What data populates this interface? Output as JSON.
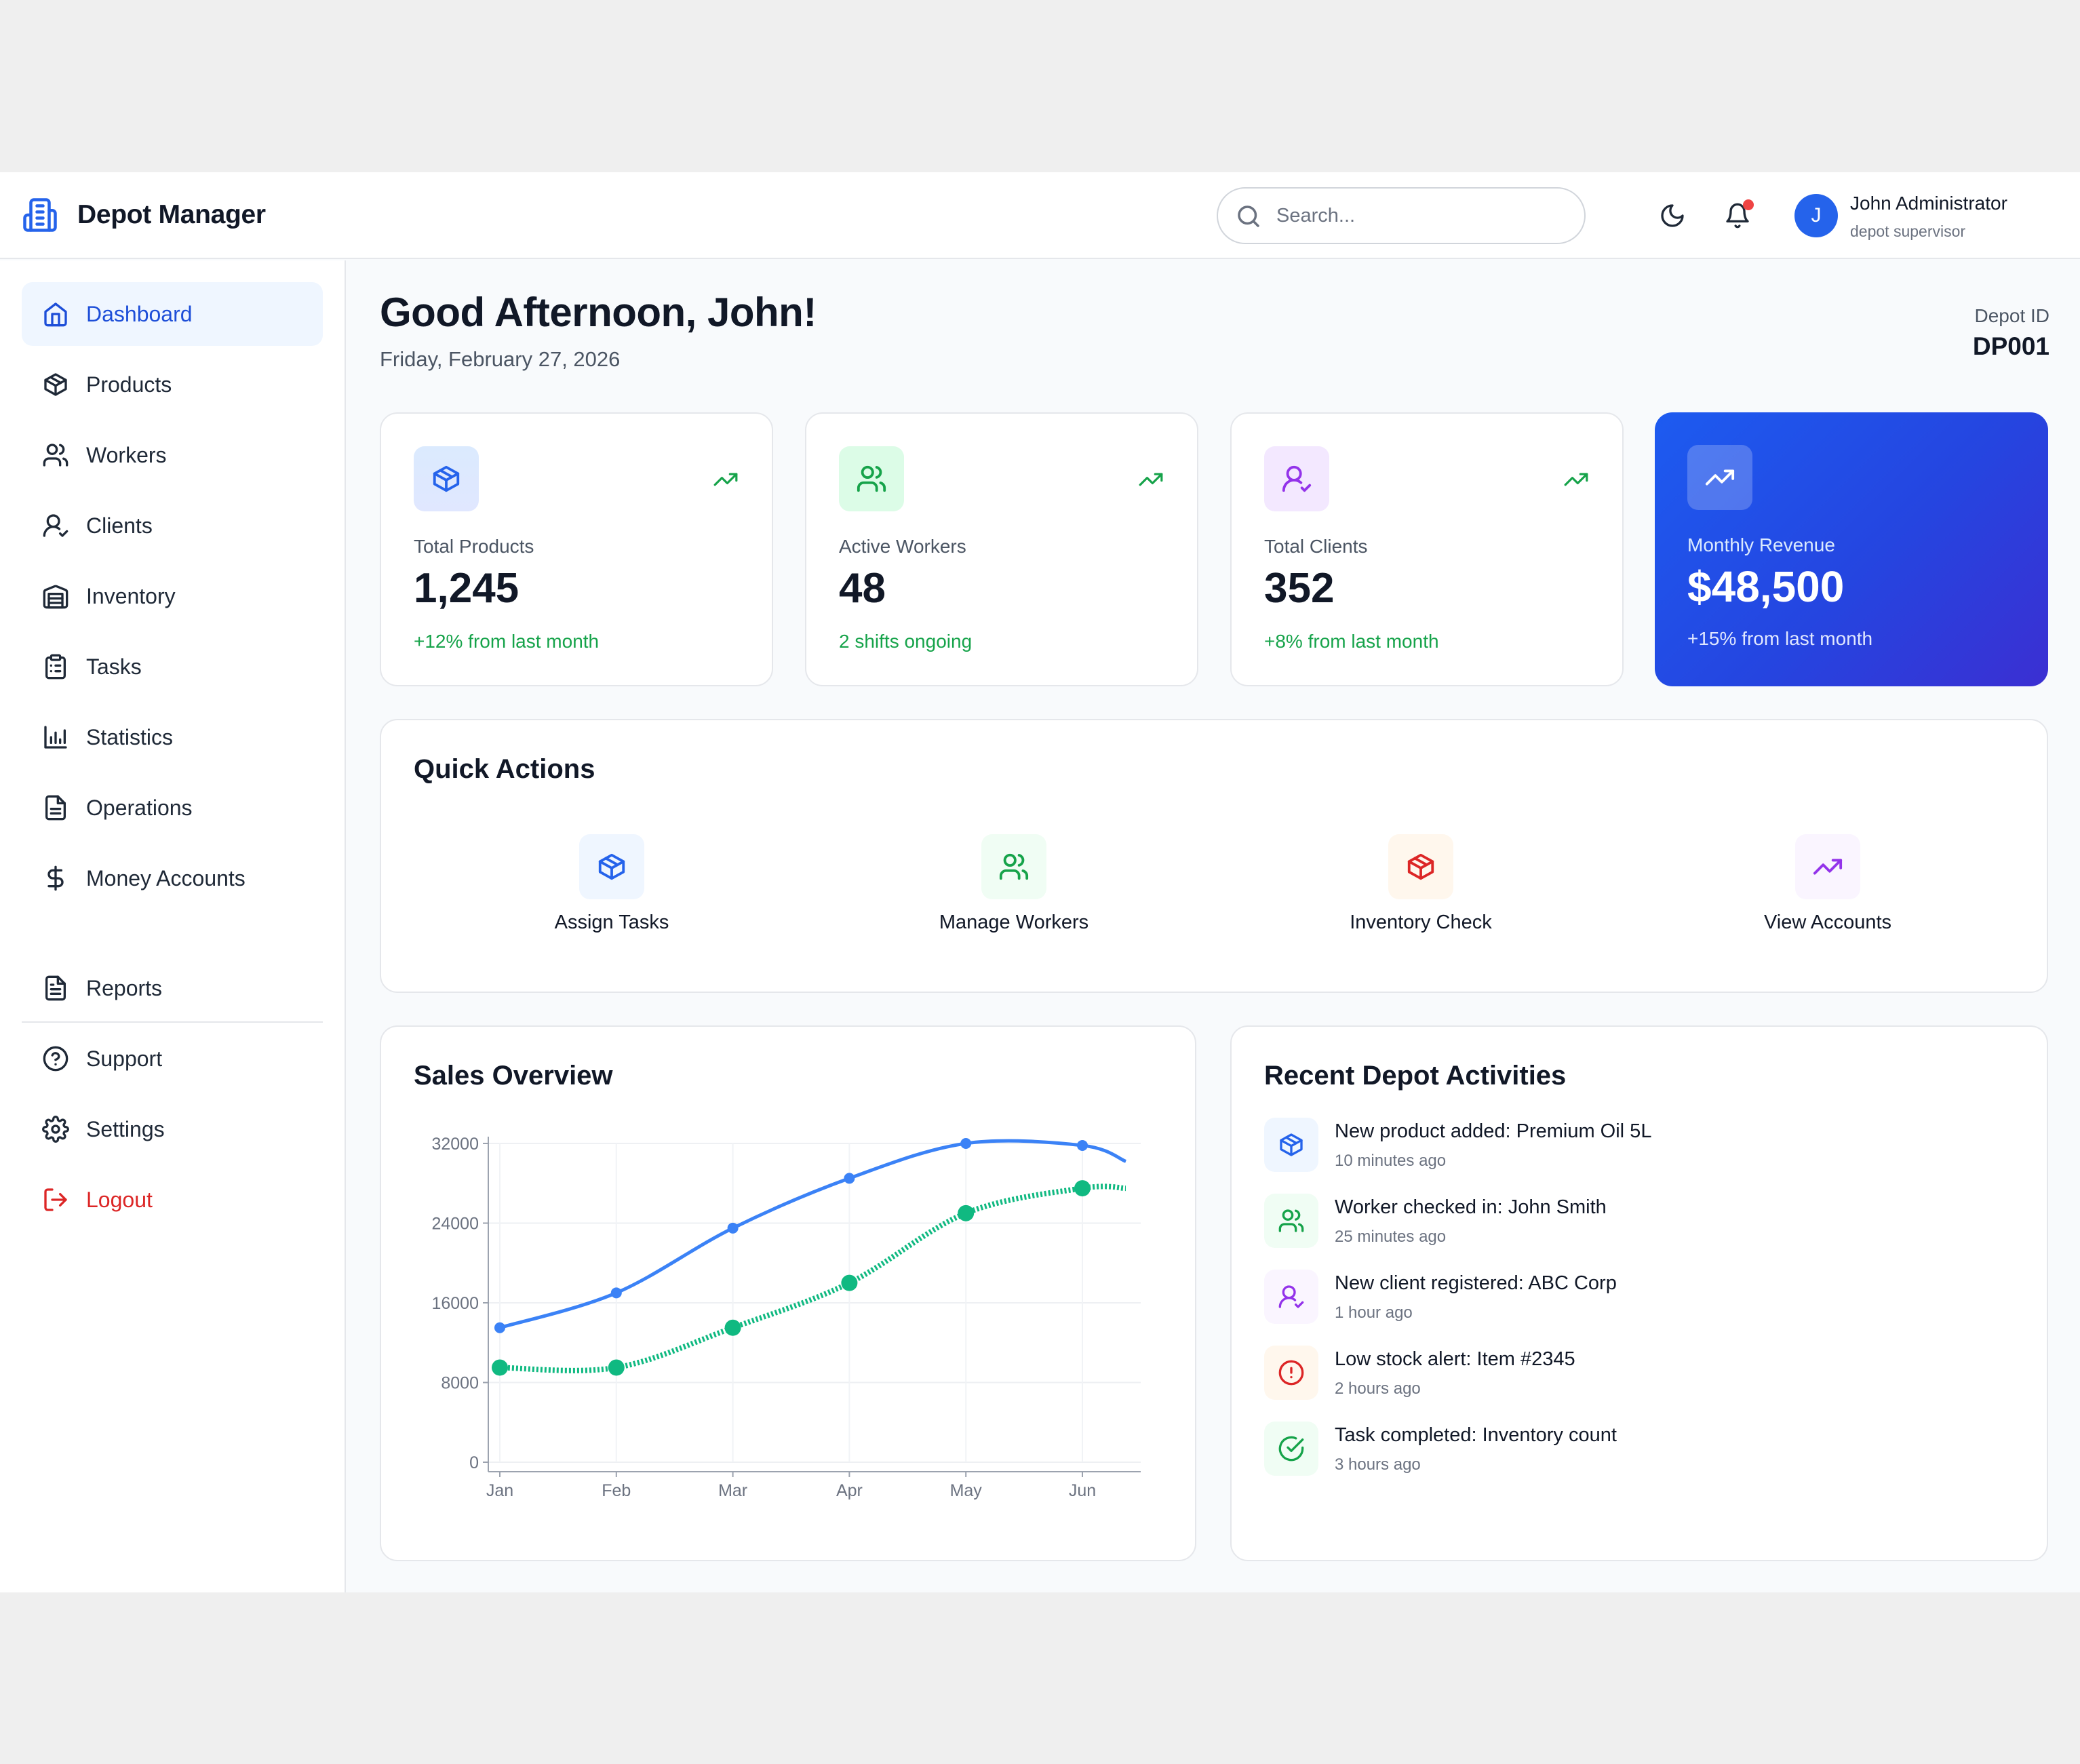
{
  "app": {
    "title": "Depot Manager"
  },
  "search": {
    "placeholder": "Search..."
  },
  "user": {
    "initial": "J",
    "name": "John Administrator",
    "role": "depot supervisor"
  },
  "sidebar": {
    "items": [
      {
        "label": "Dashboard",
        "icon": "home-icon",
        "active": true
      },
      {
        "label": "Products",
        "icon": "package-icon"
      },
      {
        "label": "Workers",
        "icon": "users-icon"
      },
      {
        "label": "Clients",
        "icon": "user-check-icon"
      },
      {
        "label": "Inventory",
        "icon": "warehouse-icon"
      },
      {
        "label": "Tasks",
        "icon": "clipboard-icon"
      },
      {
        "label": "Statistics",
        "icon": "bar-chart-icon"
      },
      {
        "label": "Operations",
        "icon": "file-icon"
      },
      {
        "label": "Money Accounts",
        "icon": "dollar-icon"
      }
    ],
    "secondary": [
      {
        "label": "Reports",
        "icon": "file-text-icon"
      },
      {
        "label": "Support",
        "icon": "help-circle-icon"
      },
      {
        "label": "Settings",
        "icon": "gear-icon"
      }
    ],
    "logout": "Logout"
  },
  "header": {
    "greeting": "Good Afternoon, John!",
    "date": "Friday, February 27, 2026",
    "depot_label": "Depot ID",
    "depot_id": "DP001"
  },
  "stats": [
    {
      "label": "Total Products",
      "value": "1,245",
      "note": "+12% from last month"
    },
    {
      "label": "Active Workers",
      "value": "48",
      "note": "2 shifts ongoing"
    },
    {
      "label": "Total Clients",
      "value": "352",
      "note": "+8% from last month"
    },
    {
      "label": "Monthly Revenue",
      "value": "$48,500",
      "note": "+15% from last month"
    }
  ],
  "quick_actions": {
    "title": "Quick Actions",
    "items": [
      {
        "label": "Assign Tasks",
        "icon": "package-icon"
      },
      {
        "label": "Manage Workers",
        "icon": "users-icon"
      },
      {
        "label": "Inventory Check",
        "icon": "package-icon"
      },
      {
        "label": "View Accounts",
        "icon": "trending-up-icon"
      }
    ]
  },
  "sales": {
    "title": "Sales Overview"
  },
  "chart_data": {
    "type": "line",
    "categories": [
      "Jan",
      "Feb",
      "Mar",
      "Apr",
      "May",
      "Jun"
    ],
    "series": [
      {
        "color": "#3b82f6",
        "style": "solid",
        "values": [
          13500,
          17000,
          23500,
          28500,
          32000,
          31800
        ]
      },
      {
        "color": "#10b981",
        "style": "dotted",
        "values": [
          9500,
          9500,
          13500,
          18000,
          25000,
          27500
        ]
      }
    ],
    "yticks": [
      0,
      8000,
      16000,
      24000,
      32000
    ],
    "ylim": [
      0,
      32000
    ],
    "grid": true
  },
  "activities": {
    "title": "Recent Depot Activities",
    "items": [
      {
        "text": "New product added: Premium Oil 5L",
        "time": "10 minutes ago",
        "icon": "package-icon"
      },
      {
        "text": "Worker checked in: John Smith",
        "time": "25 minutes ago",
        "icon": "users-icon"
      },
      {
        "text": "New client registered: ABC Corp",
        "time": "1 hour ago",
        "icon": "user-check-icon"
      },
      {
        "text": "Low stock alert: Item #2345",
        "time": "2 hours ago",
        "icon": "alert-circle-icon"
      },
      {
        "text": "Task completed: Inventory count",
        "time": "3 hours ago",
        "icon": "check-circle-icon"
      }
    ]
  }
}
